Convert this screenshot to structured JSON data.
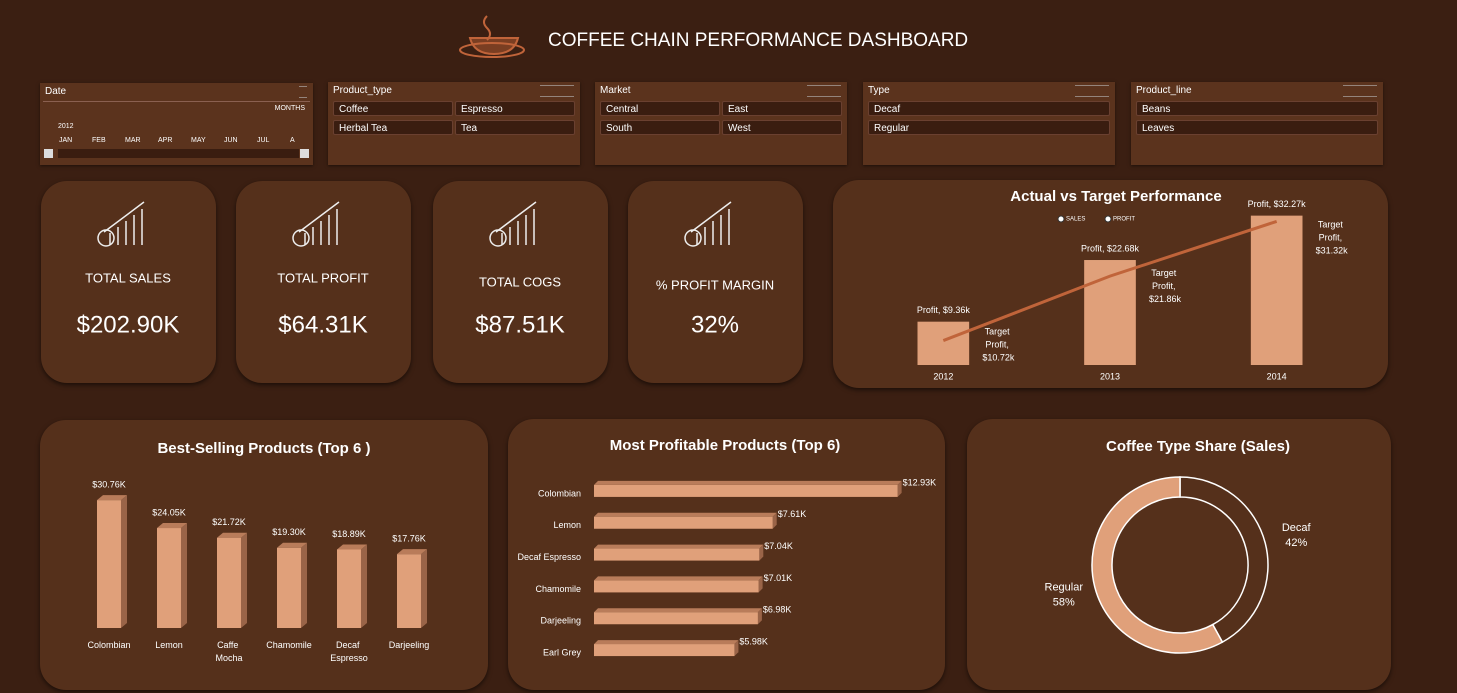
{
  "header": {
    "title": "COFFEE CHAIN PERFORMANCE DASHBOARD"
  },
  "slicers": [
    {
      "title": "Date",
      "period": "MONTHS",
      "year": "2012",
      "items": [
        "JAN",
        "FEB",
        "MAR",
        "APR",
        "MAY",
        "JUN",
        "JUL",
        "A"
      ]
    },
    {
      "title": "Product_type",
      "items": [
        "Coffee",
        "Espresso",
        "Herbal Tea",
        "Tea"
      ]
    },
    {
      "title": "Market",
      "items": [
        "Central",
        "East",
        "South",
        "West"
      ]
    },
    {
      "title": "Type",
      "items": [
        "Decaf",
        "Regular"
      ]
    },
    {
      "title": "Product_line",
      "items": [
        "Beans",
        "Leaves"
      ]
    }
  ],
  "kpis": [
    {
      "label": "TOTAL SALES",
      "value": "$202.90K"
    },
    {
      "label": "TOTAL PROFIT",
      "value": "$64.31K"
    },
    {
      "label": "TOTAL COGS",
      "value": "$87.51K"
    },
    {
      "label": "% PROFIT MARGIN",
      "value": "32%"
    }
  ],
  "chart_data": [
    {
      "type": "combo",
      "title": "Actual vs Target Performance",
      "categories": [
        "2012",
        "2013",
        "2014"
      ],
      "ylim": [
        0,
        35
      ],
      "y2lim": [
        6.5,
        34.5
      ],
      "series": [
        {
          "name": "SALES",
          "type": "bar",
          "color": "#e0a07a",
          "values": [
            9.36,
            22.68,
            32.27
          ],
          "value_labels": [
            "Profit, $9.36k",
            "Profit, $22.68k",
            "Profit, $32.27k"
          ]
        },
        {
          "name": "PROFIT",
          "type": "line",
          "axis": "y2",
          "color": "#c0643a",
          "values": [
            10.72,
            21.86,
            31.32
          ],
          "value_labels": [
            "Target Profit, $10.72k",
            "Target Profit, $21.86k",
            "Target Profit, $31.32k"
          ]
        }
      ]
    },
    {
      "type": "bar",
      "title": "Best-Selling Products (Top 6 )",
      "categories": [
        "Colombian",
        "Lemon",
        "Caffe Mocha",
        "Chamomile",
        "Decaf Espresso",
        "Darjeeling"
      ],
      "values": [
        30.76,
        24.05,
        21.72,
        19.3,
        18.89,
        17.76
      ],
      "value_labels": [
        "$30.76K",
        "$24.05K",
        "$21.72K",
        "$19.30K",
        "$18.89K",
        "$17.76K"
      ],
      "color": "#e0a07a",
      "ylim": [
        0,
        32
      ]
    },
    {
      "type": "hbar",
      "title": "Most Profitable Products (Top 6)",
      "categories": [
        "Colombian",
        "Lemon",
        "Decaf Espresso",
        "Chamomile",
        "Darjeeling",
        "Earl Grey"
      ],
      "values": [
        12.93,
        7.61,
        7.04,
        7.01,
        6.98,
        5.98
      ],
      "value_labels": [
        "$12.93K",
        "$7.61K",
        "$7.04K",
        "$7.01K",
        "$6.98K",
        "$5.98K"
      ],
      "color": "#e0a07a",
      "xlim": [
        0,
        13.5
      ]
    },
    {
      "type": "donut",
      "title": "Coffee Type Share (Sales)",
      "categories": [
        "Decaf",
        "Regular"
      ],
      "values": [
        42,
        58
      ],
      "value_labels": [
        "42%",
        "58%"
      ],
      "colors": [
        "#55301b",
        "#e0a07a"
      ]
    }
  ]
}
